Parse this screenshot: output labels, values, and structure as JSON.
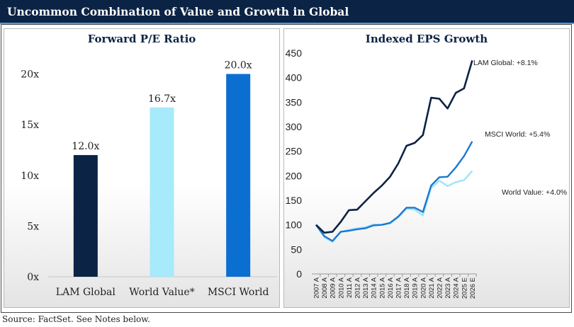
{
  "banner": {
    "title": "Uncommon Combination of Value and Growth in Global"
  },
  "footer": {
    "source": "Source: FactSet. See Notes below."
  },
  "chart_data": [
    {
      "type": "bar",
      "title": "Forward P/E Ratio",
      "categories": [
        "LAM Global",
        "World Value*",
        "MSCI World"
      ],
      "values": [
        12.0,
        16.7,
        20.0
      ],
      "data_labels": [
        "12.0x",
        "16.7x",
        "20.0x"
      ],
      "colors": [
        "#0b2344",
        "#a6eafb",
        "#0a6fd1"
      ],
      "yticks": [
        0,
        5,
        10,
        15,
        20
      ],
      "ytick_labels": [
        "0x",
        "5x",
        "10x",
        "15x",
        "20x"
      ],
      "ylim": [
        0,
        22
      ],
      "xlabel": "",
      "ylabel": ""
    },
    {
      "type": "line",
      "title": "Indexed EPS Growth",
      "x": [
        "2007 A",
        "2008 A",
        "2009 A",
        "2010 A",
        "2011 A",
        "2012 A",
        "2013 A",
        "2014 A",
        "2015 A",
        "2016 A",
        "2017 A",
        "2018 A",
        "2019 A",
        "2020 A",
        "2021 A",
        "2022 A",
        "2023 A",
        "2024 A",
        "2025 E",
        "2026 E"
      ],
      "series": [
        {
          "name": "LAM Global",
          "annotation": "LAM Global: +8.1%",
          "color": "#0b2344",
          "values": [
            100,
            84,
            86,
            106,
            130,
            131,
            148,
            165,
            180,
            198,
            225,
            261,
            267,
            283,
            359,
            357,
            337,
            369,
            378,
            435
          ]
        },
        {
          "name": "MSCI World",
          "annotation": "MSCI World: +5.4%",
          "color": "#1a78d0",
          "values": [
            100,
            77,
            67,
            86,
            88,
            91,
            93,
            99,
            100,
            104,
            117,
            135,
            135,
            126,
            180,
            197,
            198,
            217,
            240,
            270
          ]
        },
        {
          "name": "World Value",
          "annotation": "World Value: +4.0%",
          "color": "#9fe4f8",
          "values": [
            100,
            75,
            65,
            85,
            90,
            93,
            95,
            101,
            100,
            103,
            115,
            133,
            131,
            119,
            175,
            190,
            179,
            187,
            191,
            210
          ]
        }
      ],
      "yticks": [
        0,
        50,
        100,
        150,
        200,
        250,
        300,
        350,
        400,
        450
      ],
      "ylim": [
        0,
        450
      ],
      "xlabel": "",
      "ylabel": ""
    }
  ]
}
